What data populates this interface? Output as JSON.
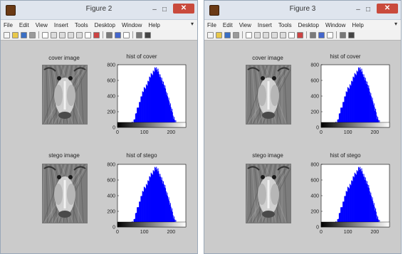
{
  "windows": [
    {
      "title": "Figure 2",
      "buttons": {
        "minimize": "–",
        "maximize": "□",
        "close": "✕"
      },
      "menus": [
        "File",
        "Edit",
        "View",
        "Insert",
        "Tools",
        "Desktop",
        "Window",
        "Help"
      ],
      "menu_overflow": "▾",
      "toolbar_icons": [
        "new-figure-icon",
        "open-file-icon",
        "save-icon",
        "print-icon",
        "pointer-icon",
        "zoom-in-icon",
        "zoom-out-icon",
        "pan-icon",
        "rotate-icon",
        "data-cursor-icon",
        "brush-icon",
        "link-icon",
        "colorbar-icon",
        "legend-icon",
        "hide-tools-icon",
        "show-tools-icon"
      ],
      "panels": [
        {
          "image_title": "cover image",
          "hist_title": "hist of cover"
        },
        {
          "image_title": "stego image",
          "hist_title": "hist of stego"
        }
      ]
    },
    {
      "title": "Figure 3",
      "buttons": {
        "minimize": "–",
        "maximize": "□",
        "close": "✕"
      },
      "menus": [
        "File",
        "Edit",
        "View",
        "Insert",
        "Tools",
        "Desktop",
        "Window",
        "Help"
      ],
      "menu_overflow": "▾",
      "toolbar_icons": [
        "new-figure-icon",
        "open-file-icon",
        "save-icon",
        "print-icon",
        "pointer-icon",
        "zoom-in-icon",
        "zoom-out-icon",
        "pan-icon",
        "rotate-icon",
        "data-cursor-icon",
        "brush-icon",
        "link-icon",
        "colorbar-icon",
        "legend-icon",
        "hide-tools-icon",
        "show-tools-icon"
      ],
      "panels": [
        {
          "image_title": "cover image",
          "hist_title": "hist of cover"
        },
        {
          "image_title": "stego image",
          "hist_title": "hist of stego"
        }
      ]
    }
  ],
  "colors": {
    "bar": "#0000ff",
    "figure_bg": "#cbcbcb",
    "close": "#c94a3c"
  },
  "chart_data": [
    {
      "type": "bar",
      "figure": "Figure 2",
      "title": "hist of cover",
      "xlim": [
        0,
        255
      ],
      "ylim": [
        0,
        800
      ],
      "xticks": [
        "0",
        "100",
        "200"
      ],
      "yticks": [
        "0",
        "200",
        "400",
        "600",
        "800"
      ],
      "x": [
        0,
        20,
        40,
        60,
        70,
        80,
        90,
        100,
        110,
        120,
        130,
        140,
        150,
        160,
        170,
        180,
        190,
        200,
        210,
        220,
        240,
        255
      ],
      "values": [
        0,
        0,
        10,
        80,
        200,
        310,
        420,
        500,
        560,
        640,
        700,
        760,
        720,
        650,
        560,
        470,
        360,
        230,
        120,
        40,
        0,
        0
      ]
    },
    {
      "type": "bar",
      "figure": "Figure 2",
      "title": "hist of stego",
      "xlim": [
        0,
        255
      ],
      "ylim": [
        0,
        800
      ],
      "xticks": [
        "0",
        "100",
        "200"
      ],
      "yticks": [
        "0",
        "200",
        "400",
        "600",
        "800"
      ],
      "x": [
        0,
        20,
        40,
        60,
        70,
        80,
        90,
        100,
        110,
        120,
        130,
        140,
        150,
        160,
        170,
        180,
        190,
        200,
        210,
        220,
        240,
        255
      ],
      "values": [
        0,
        0,
        10,
        80,
        200,
        310,
        420,
        500,
        560,
        640,
        700,
        760,
        720,
        650,
        560,
        470,
        360,
        230,
        120,
        40,
        0,
        0
      ]
    },
    {
      "type": "bar",
      "figure": "Figure 3",
      "title": "hist of cover",
      "xlim": [
        0,
        255
      ],
      "ylim": [
        0,
        800
      ],
      "xticks": [
        "0",
        "100",
        "200"
      ],
      "yticks": [
        "0",
        "200",
        "400",
        "600",
        "800"
      ],
      "x": [
        0,
        20,
        40,
        60,
        70,
        80,
        90,
        100,
        110,
        120,
        130,
        140,
        150,
        160,
        170,
        180,
        190,
        200,
        210,
        220,
        240,
        255
      ],
      "values": [
        0,
        0,
        10,
        80,
        200,
        310,
        420,
        500,
        560,
        640,
        700,
        760,
        720,
        650,
        560,
        470,
        360,
        230,
        120,
        40,
        0,
        0
      ]
    },
    {
      "type": "bar",
      "figure": "Figure 3",
      "title": "hist of stego",
      "xlim": [
        0,
        255
      ],
      "ylim": [
        0,
        800
      ],
      "xticks": [
        "0",
        "100",
        "200"
      ],
      "yticks": [
        "0",
        "200",
        "400",
        "600",
        "800"
      ],
      "x": [
        0,
        20,
        40,
        60,
        70,
        80,
        90,
        100,
        110,
        120,
        130,
        140,
        150,
        160,
        170,
        180,
        190,
        200,
        210,
        220,
        240,
        255
      ],
      "values": [
        0,
        0,
        10,
        80,
        200,
        310,
        420,
        500,
        560,
        640,
        700,
        760,
        720,
        650,
        560,
        470,
        360,
        230,
        120,
        40,
        0,
        0
      ]
    }
  ]
}
